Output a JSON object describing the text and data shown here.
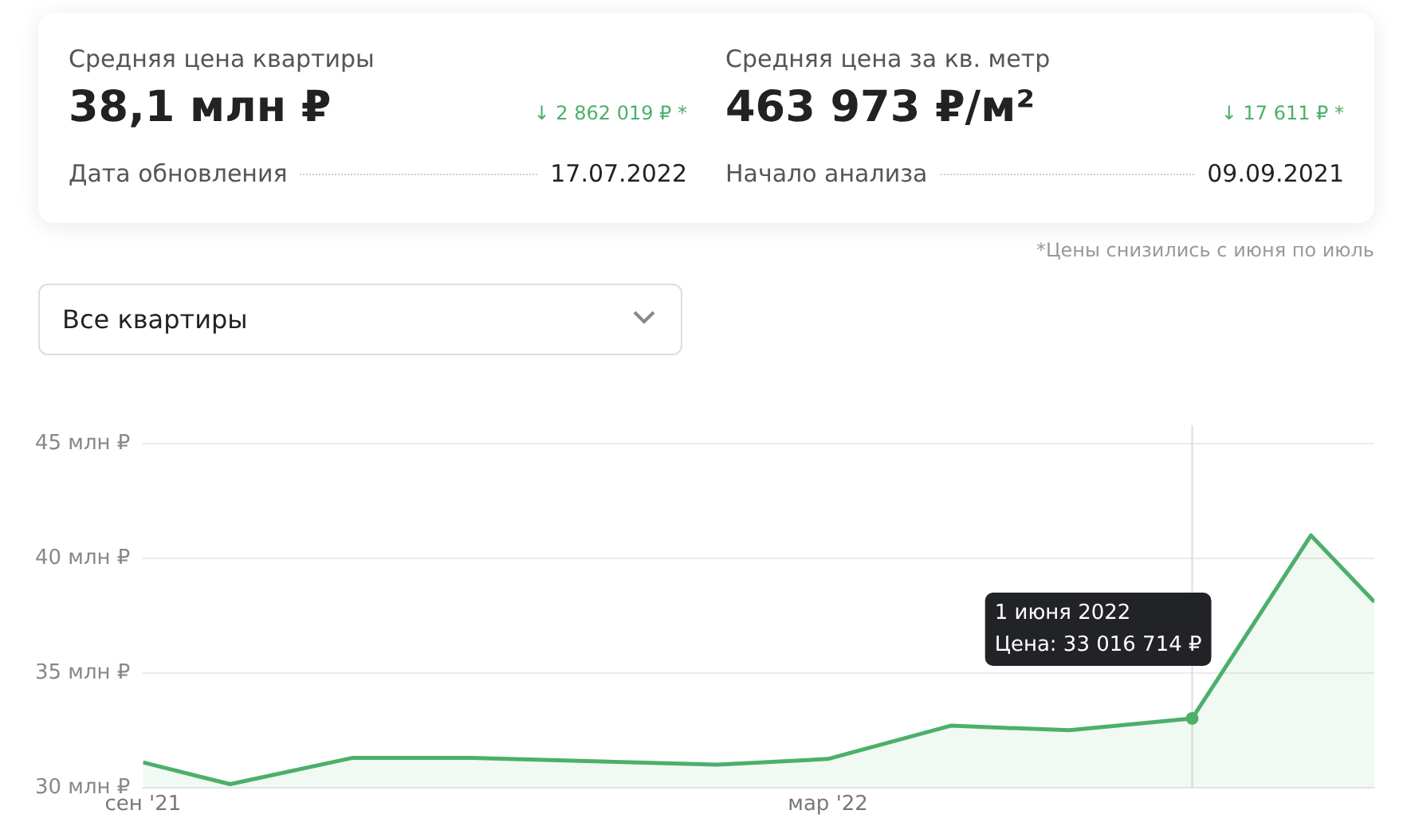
{
  "chart_data": {
    "type": "area",
    "x": [
      "2021-09-09",
      "2021-10-01",
      "2021-11-01",
      "2021-12-01",
      "2022-01-01",
      "2022-02-01",
      "2022-03-01",
      "2022-04-01",
      "2022-05-01",
      "2022-06-01",
      "2022-07-01",
      "2022-07-17"
    ],
    "series": [
      {
        "color": "#4caf6a",
        "values": [
          31.1,
          30.15,
          31.3,
          31.3,
          31.15,
          31.0,
          31.25,
          32.7,
          32.5,
          33.016714,
          41.0,
          38.1
        ]
      }
    ],
    "xlim": [
      "2021-09-09",
      "2022-07-17"
    ],
    "xticks": [
      {
        "value": "2021-09-09",
        "label": "сен '21"
      },
      {
        "value": "2022-03-01",
        "label": "мар '22"
      }
    ],
    "ylim": [
      30,
      45.8
    ],
    "yticks": [
      {
        "value": 30,
        "label": "30 млн ₽"
      },
      {
        "value": 35,
        "label": "35 млн ₽"
      },
      {
        "value": 40,
        "label": "40 млн ₽"
      },
      {
        "value": 45,
        "label": "45 млн ₽"
      }
    ],
    "grid": "y",
    "legend": false,
    "marker": "none",
    "ref_lines": [
      {
        "axis": "x",
        "value": "2022-06-01",
        "color": "#dddddd"
      }
    ],
    "annotations": [
      "Средняя цена квартиры",
      "38,1 млн ₽",
      "↓ 2 862 019 ₽ *",
      "Дата обновления",
      "17.07.2022",
      "Средняя цена за кв. метр",
      "463 973 ₽/м²",
      "↓ 17 611 ₽ *",
      "Начало анализа",
      "09.09.2021",
      "*Цены снизились с июня по июль",
      "Все квартиры",
      {
        "text": "1 июня 2022\nЦена: 33 016 714 ₽",
        "x": "2022-06-01",
        "y": 33.016714
      }
    ]
  }
}
